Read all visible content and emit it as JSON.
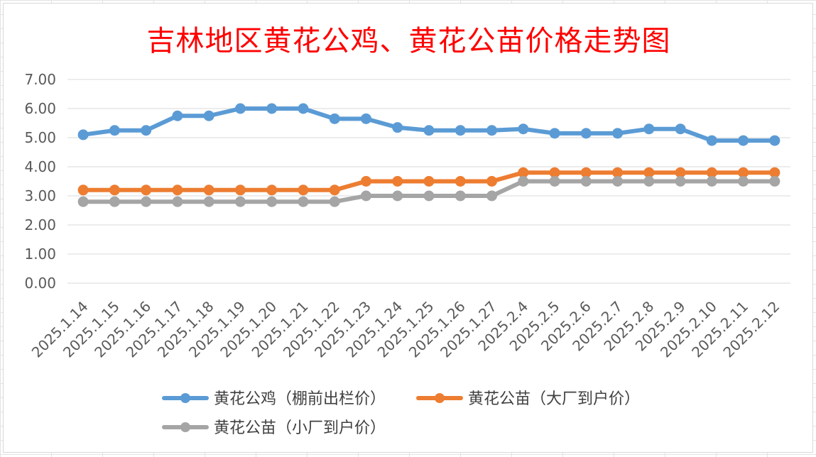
{
  "chart_data": {
    "type": "line",
    "title": "吉林地区黄花公鸡、黄花公苗价格走势图",
    "categories": [
      "2025.1.14",
      "2025.1.15",
      "2025.1.16",
      "2025.1.17",
      "2025.1.18",
      "2025.1.19",
      "2025.1.20",
      "2025.1.21",
      "2025.1.22",
      "2025.1.23",
      "2025.1.24",
      "2025.1.25",
      "2025.1.26",
      "2025.1.27",
      "2025.2.4",
      "2025.2.5",
      "2025.2.6",
      "2025.2.7",
      "2025.2.8",
      "2025.2.9",
      "2025.2.10",
      "2025.2.11",
      "2025.2.12"
    ],
    "yticks": [
      "0.00",
      "1.00",
      "2.00",
      "3.00",
      "4.00",
      "5.00",
      "6.00",
      "7.00"
    ],
    "ylim": [
      0,
      7
    ],
    "grid": true,
    "legend_position": "bottom",
    "series": [
      {
        "name": "黄花公鸡（棚前出栏价）",
        "color": "#5b9bd5",
        "values": [
          5.1,
          5.25,
          5.25,
          5.75,
          5.75,
          6.0,
          6.0,
          6.0,
          5.65,
          5.65,
          5.35,
          5.25,
          5.25,
          5.25,
          5.3,
          5.15,
          5.15,
          5.15,
          5.3,
          5.3,
          4.9,
          4.9,
          4.9
        ]
      },
      {
        "name": "黄花公苗（大厂到户价）",
        "color": "#ed7d31",
        "values": [
          3.2,
          3.2,
          3.2,
          3.2,
          3.2,
          3.2,
          3.2,
          3.2,
          3.2,
          3.5,
          3.5,
          3.5,
          3.5,
          3.5,
          3.8,
          3.8,
          3.8,
          3.8,
          3.8,
          3.8,
          3.8,
          3.8,
          3.8
        ]
      },
      {
        "name": "黄花公苗（小厂到户价）",
        "color": "#a5a5a5",
        "values": [
          2.8,
          2.8,
          2.8,
          2.8,
          2.8,
          2.8,
          2.8,
          2.8,
          2.8,
          3.0,
          3.0,
          3.0,
          3.0,
          3.0,
          3.5,
          3.5,
          3.5,
          3.5,
          3.5,
          3.5,
          3.5,
          3.5,
          3.5
        ]
      }
    ]
  }
}
